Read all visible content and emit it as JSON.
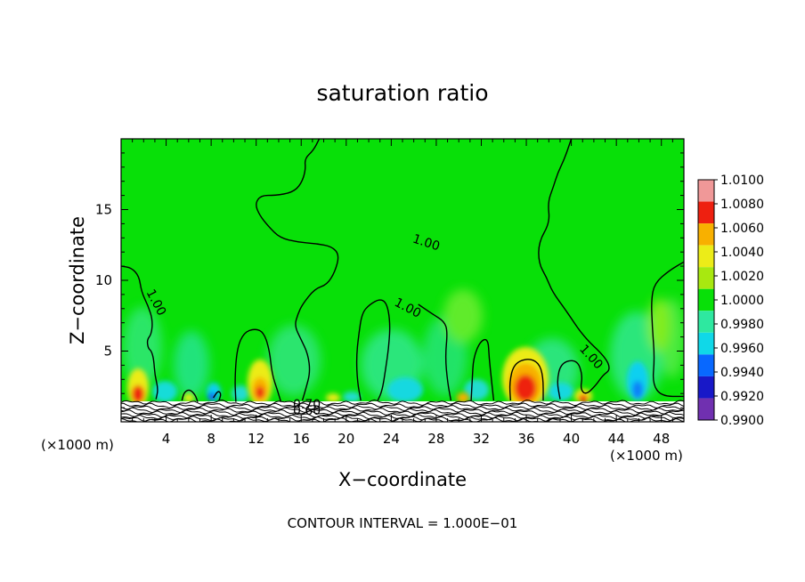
{
  "chart_data": {
    "type": "heatmap",
    "title": "saturation ratio",
    "xlabel": "X−coordinate",
    "ylabel": "Z−coordinate",
    "xunit_left": "(×1000 m)",
    "xunit_right": "(×1000 m)",
    "xlim": [
      0,
      50
    ],
    "ylim": [
      0,
      20
    ],
    "xticks": [
      "4",
      "8",
      "12",
      "16",
      "20",
      "24",
      "28",
      "32",
      "36",
      "40",
      "44",
      "48"
    ],
    "xtick_values": [
      4,
      8,
      12,
      16,
      20,
      24,
      28,
      32,
      36,
      40,
      44,
      48
    ],
    "yticks": [
      "5",
      "10",
      "15"
    ],
    "ytick_values": [
      5,
      10,
      15
    ],
    "contour_interval_label": "CONTOUR INTERVAL = 1.000E−01",
    "contour_labels": [
      {
        "text": "1.00",
        "x": 27,
        "y": 12.4
      },
      {
        "text": "1.00",
        "x": 2.8,
        "y": 8.3
      },
      {
        "text": "1.00",
        "x": 25.3,
        "y": 7.8
      },
      {
        "text": "1.00",
        "x": 41.5,
        "y": 4.4
      },
      {
        "text": "0.70",
        "x": 16.5,
        "y": 0.95
      },
      {
        "text": "0.60",
        "x": 16.5,
        "y": 0.5
      }
    ],
    "colorbar": {
      "levels": [
        "1.0100",
        "1.0080",
        "1.0060",
        "1.0040",
        "1.0020",
        "1.0000",
        "0.9980",
        "0.9960",
        "0.9940",
        "0.9920",
        "0.9900"
      ],
      "colors": [
        "#f09898",
        "#ee2010",
        "#f8b000",
        "#ecec18",
        "#a8e810",
        "#08e008",
        "#2ee8a0",
        "#10d8e8",
        "#0868ff",
        "#1818c8",
        "#7030b0"
      ]
    },
    "contours_1_00": [
      [
        [
          0,
          11
        ],
        [
          0.9,
          10.9
        ],
        [
          1.6,
          10.3
        ],
        [
          1.8,
          9.2
        ],
        [
          2.4,
          8.2
        ],
        [
          2.8,
          7.2
        ],
        [
          2.7,
          6.2
        ],
        [
          2.3,
          5.8
        ],
        [
          2.4,
          5.2
        ],
        [
          2.7,
          5.0
        ],
        [
          2.9,
          4.4
        ],
        [
          3.0,
          3.3
        ],
        [
          3.3,
          2.3
        ],
        [
          3.1,
          1.6
        ]
      ],
      [
        [
          5.4,
          1.5
        ],
        [
          5.6,
          2.1
        ],
        [
          6.1,
          2.3
        ],
        [
          6.6,
          1.9
        ],
        [
          6.8,
          1.4
        ]
      ],
      [
        [
          8.2,
          1.7
        ],
        [
          8.6,
          2.2
        ],
        [
          8.9,
          2.0
        ],
        [
          8.7,
          1.5
        ]
      ],
      [
        [
          10.2,
          1.4
        ],
        [
          10.1,
          3.0
        ],
        [
          10.3,
          5.2
        ],
        [
          10.9,
          6.3
        ],
        [
          11.9,
          6.6
        ],
        [
          12.7,
          6.3
        ],
        [
          13.2,
          5.0
        ],
        [
          13.4,
          3.4
        ],
        [
          13.9,
          2.2
        ],
        [
          14.2,
          1.4
        ]
      ],
      [
        [
          16.1,
          1.5
        ],
        [
          16.4,
          2.3
        ],
        [
          16.8,
          3.5
        ],
        [
          16.6,
          4.8
        ],
        [
          16.0,
          5.8
        ],
        [
          15.4,
          6.8
        ],
        [
          15.7,
          7.6
        ],
        [
          16.1,
          8.3
        ],
        [
          17.2,
          9.4
        ],
        [
          18.3,
          9.7
        ],
        [
          19.0,
          10.6
        ],
        [
          19.4,
          11.8
        ],
        [
          18.7,
          12.4
        ],
        [
          17.3,
          12.6
        ],
        [
          15.7,
          12.7
        ],
        [
          14.1,
          13.0
        ],
        [
          13.1,
          13.8
        ],
        [
          12.3,
          14.6
        ],
        [
          11.9,
          15.4
        ],
        [
          12.4,
          16.0
        ],
        [
          13.7,
          16.0
        ],
        [
          15.2,
          16.2
        ],
        [
          16.0,
          16.8
        ],
        [
          16.4,
          17.8
        ],
        [
          16.3,
          18.6
        ],
        [
          17.1,
          19.2
        ],
        [
          17.6,
          20.0
        ]
      ],
      [
        [
          21.3,
          1.5
        ],
        [
          21.0,
          2.8
        ],
        [
          20.9,
          4.5
        ],
        [
          21.1,
          6.1
        ],
        [
          21.4,
          7.7
        ],
        [
          22.1,
          8.3
        ],
        [
          23.0,
          8.7
        ],
        [
          23.6,
          8.4
        ],
        [
          23.9,
          7.1
        ],
        [
          23.8,
          5.4
        ],
        [
          23.5,
          3.7
        ],
        [
          23.2,
          2.2
        ],
        [
          22.8,
          1.5
        ]
      ],
      [
        [
          26.4,
          8.3
        ],
        [
          27.7,
          7.6
        ],
        [
          28.7,
          7.1
        ],
        [
          29.0,
          6.4
        ],
        [
          28.8,
          4.6
        ],
        [
          29.0,
          2.8
        ],
        [
          29.3,
          1.5
        ]
      ],
      [
        [
          31.1,
          1.5
        ],
        [
          31.2,
          3.0
        ],
        [
          31.3,
          4.5
        ],
        [
          31.9,
          5.7
        ],
        [
          32.6,
          5.9
        ],
        [
          32.7,
          4.5
        ],
        [
          32.9,
          3.0
        ],
        [
          33.1,
          1.5
        ]
      ],
      [
        [
          34.6,
          1.5
        ],
        [
          34.5,
          2.8
        ],
        [
          34.9,
          4.1
        ],
        [
          36.1,
          4.5
        ],
        [
          37.1,
          4.2
        ],
        [
          37.5,
          3.2
        ],
        [
          37.5,
          1.5
        ]
      ],
      [
        [
          39.0,
          1.6
        ],
        [
          38.7,
          2.9
        ],
        [
          39.1,
          4.2
        ],
        [
          40.5,
          4.4
        ],
        [
          41.0,
          3.3
        ],
        [
          40.8,
          2.3
        ],
        [
          41.3,
          1.9
        ],
        [
          42.2,
          2.6
        ],
        [
          42.8,
          3.3
        ],
        [
          43.5,
          3.7
        ],
        [
          43.0,
          4.6
        ],
        [
          41.1,
          6.0
        ],
        [
          39.5,
          7.9
        ],
        [
          38.3,
          9.2
        ],
        [
          37.8,
          10.2
        ],
        [
          37.1,
          11.2
        ],
        [
          37.1,
          12.7
        ],
        [
          38.1,
          14.1
        ],
        [
          37.9,
          15.5
        ],
        [
          38.4,
          16.6
        ],
        [
          38.8,
          17.6
        ],
        [
          39.4,
          18.6
        ],
        [
          40.0,
          20.0
        ]
      ],
      [
        [
          50,
          11.3
        ],
        [
          48.7,
          10.7
        ],
        [
          47.4,
          9.8
        ],
        [
          47.1,
          8.6
        ],
        [
          47.2,
          6.6
        ],
        [
          47.4,
          4.5
        ],
        [
          47.2,
          2.7
        ],
        [
          48.0,
          1.8
        ],
        [
          50,
          1.8
        ]
      ]
    ]
  }
}
